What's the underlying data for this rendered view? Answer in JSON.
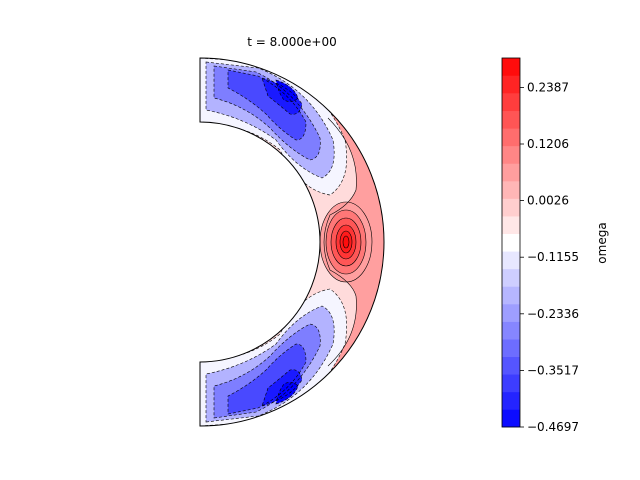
{
  "chart_data": {
    "type": "heatmap",
    "title": "t = 8.000e+00",
    "geometry": "half-annulus contour plot (meridional slice, right half)",
    "colorbar": {
      "label": "omega",
      "vmin": -0.4697,
      "vmax": 0.3,
      "ticks": [
        0.2387,
        0.1206,
        0.0026,
        -0.1155,
        -0.2336,
        -0.3517,
        -0.4697
      ],
      "tick_labels": [
        "0.2387",
        "0.1206",
        "0.0026",
        "−0.1155",
        "−0.2336",
        "−0.3517",
        "−0.4697"
      ],
      "cmap": "bwr",
      "levels": 21
    },
    "features": [
      {
        "name": "equatorial-positive-core",
        "value": 0.28
      },
      {
        "name": "outer-positive-band",
        "value": 0.06
      },
      {
        "name": "north-negative-lobe",
        "value": -0.47
      },
      {
        "name": "south-negative-lobe",
        "value": -0.47
      }
    ],
    "colors": {
      "negative": "#0000ff",
      "positive": "#ff0000",
      "neutral": "#ffffff"
    }
  }
}
